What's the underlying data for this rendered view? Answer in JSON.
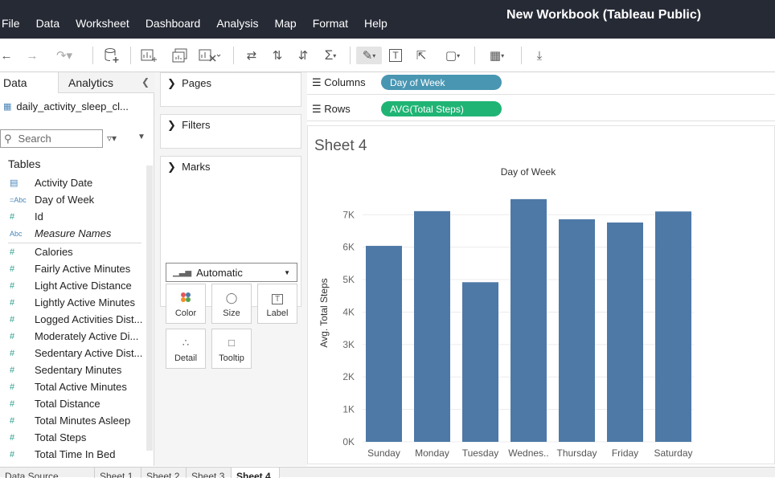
{
  "app": {
    "title": "New Workbook (Tableau Public)",
    "menu": [
      "File",
      "Data",
      "Worksheet",
      "Dashboard",
      "Analysis",
      "Map",
      "Format",
      "Help"
    ]
  },
  "left_panel": {
    "tab_data": "Data",
    "tab_analytics": "Analytics",
    "datasource": "daily_activity_sleep_cl...",
    "search_placeholder": "Search",
    "tables_label": "Tables",
    "dimensions": [
      {
        "type": "date",
        "icon": "calendar-icon",
        "name": "Activity Date"
      },
      {
        "type": "string",
        "icon": "abc-icon",
        "name": "Day of Week"
      },
      {
        "type": "number",
        "icon": "hash-icon",
        "name": "Id"
      },
      {
        "type": "string",
        "icon": "abc-icon",
        "name": "Measure Names"
      }
    ],
    "measures": [
      "Calories",
      "Fairly Active Minutes",
      "Light Active Distance",
      "Lightly Active Minutes",
      "Logged Activities Dist...",
      "Moderately Active Di...",
      "Sedentary Active Dist...",
      "Sedentary Minutes",
      "Total Active Minutes",
      "Total Distance",
      "Total Minutes Asleep",
      "Total Steps",
      "Total Time In Bed"
    ]
  },
  "shelves": {
    "pages": "Pages",
    "filters": "Filters",
    "marks": "Marks",
    "mark_type": "Automatic",
    "mark_buttons": [
      "Color",
      "Size",
      "Label",
      "Detail",
      "Tooltip"
    ]
  },
  "view": {
    "columns_label": "Columns",
    "rows_label": "Rows",
    "columns_pill": "Day of Week",
    "rows_pill": "AVG(Total Steps)",
    "sheet_title": "Sheet 4"
  },
  "colors": {
    "titlebar": "#262a35",
    "dimension_pill": "#4996b2",
    "measure_pill": "#1fb474",
    "bar": "#4e79a7"
  },
  "chart_data": {
    "type": "bar",
    "title": "Day of Week",
    "xlabel": "",
    "ylabel": "Avg. Total Steps",
    "categories": [
      "Sunday",
      "Monday",
      "Tuesday",
      "Wednes..",
      "Thursday",
      "Friday",
      "Saturday"
    ],
    "values": [
      6040,
      7110,
      4920,
      7480,
      6860,
      6760,
      7100
    ],
    "yticks": [
      0,
      1000,
      2000,
      3000,
      4000,
      5000,
      6000,
      7000
    ],
    "ytick_labels": [
      "0K",
      "1K",
      "2K",
      "3K",
      "4K",
      "5K",
      "6K",
      "7K"
    ],
    "ylim": [
      0,
      7700
    ],
    "grid": true
  },
  "bottom_tabs": [
    "Data Source",
    "Sheet 1",
    "Sheet 2",
    "Sheet 3",
    "Sheet 4"
  ]
}
